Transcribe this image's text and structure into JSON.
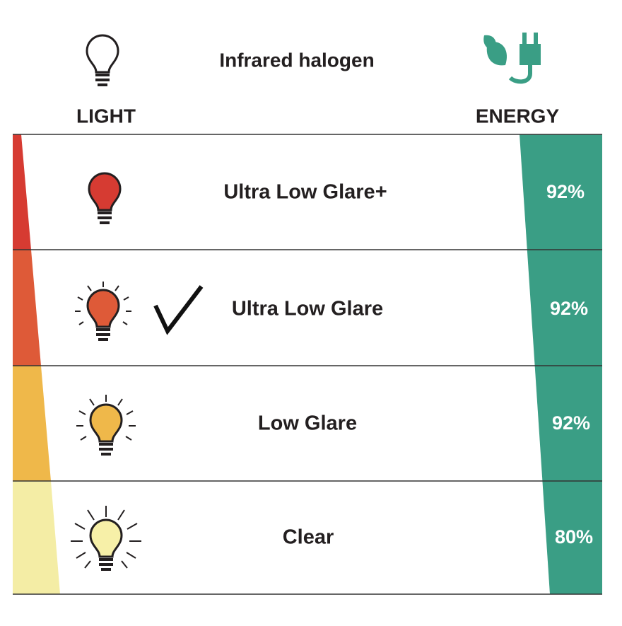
{
  "header": {
    "title": "Infrared halogen",
    "light_label": "LIGHT",
    "energy_label": "ENERGY"
  },
  "rows": [
    {
      "label": "Ultra Low Glare+",
      "energy": "92%"
    },
    {
      "label": "Ultra Low Glare",
      "energy": "92%"
    },
    {
      "label": "Low Glare",
      "energy": "92%"
    },
    {
      "label": "Clear",
      "energy": "80%"
    }
  ]
}
